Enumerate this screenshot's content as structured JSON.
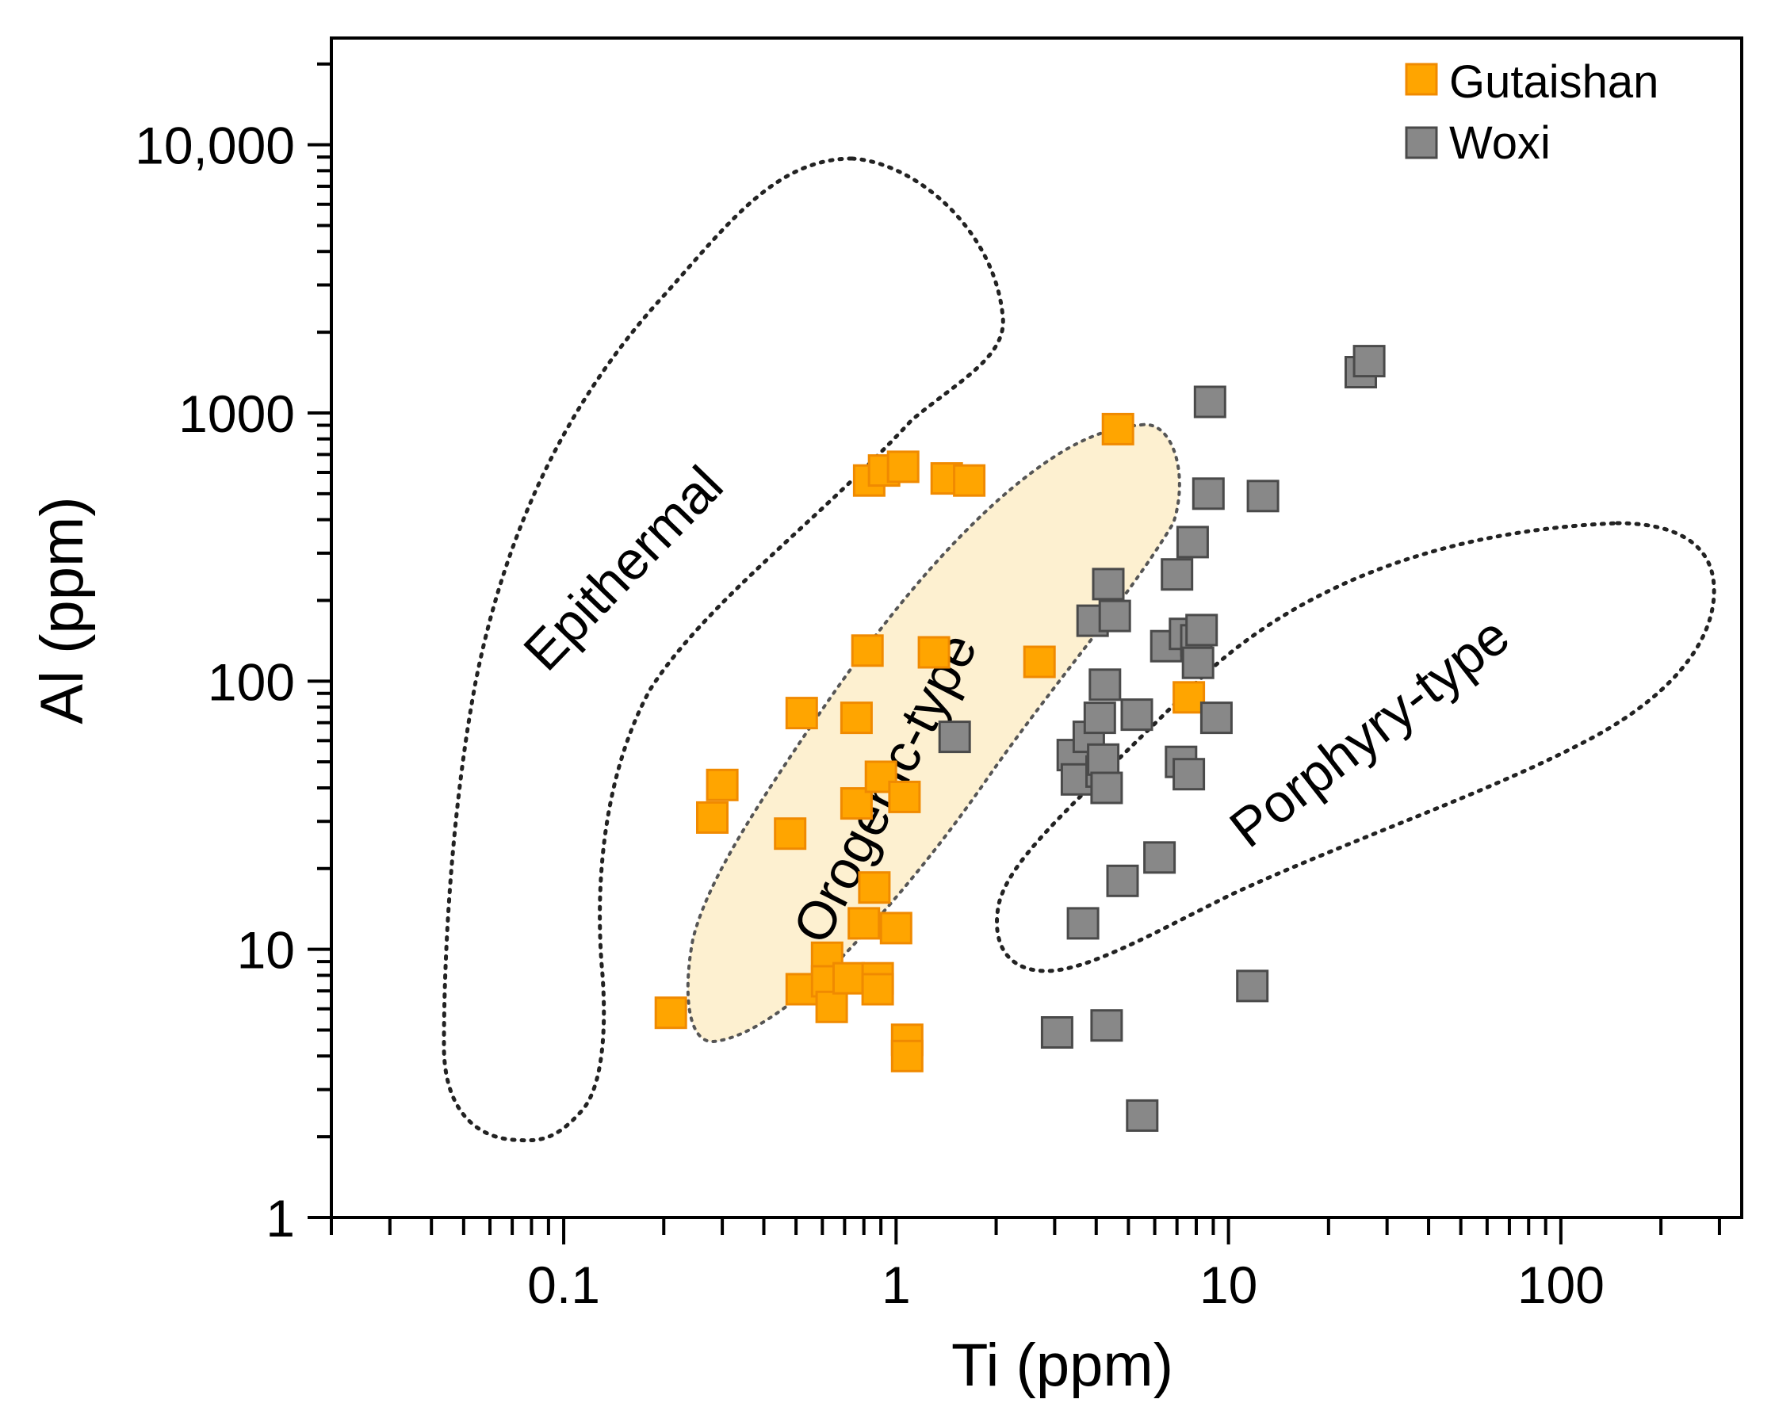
{
  "chart_data": {
    "type": "scatter",
    "title": "",
    "xlabel": "Ti (ppm)",
    "ylabel": "Al (ppm)",
    "xscale": "log",
    "yscale": "log",
    "xlim": [
      0.02,
      350
    ],
    "ylim": [
      1,
      25000
    ],
    "x_tick_labels": [
      {
        "value": 0.1,
        "label": "0.1"
      },
      {
        "value": 1,
        "label": "1"
      },
      {
        "value": 10,
        "label": "10"
      },
      {
        "value": 100,
        "label": "100"
      }
    ],
    "y_tick_labels": [
      {
        "value": 1,
        "label": "1"
      },
      {
        "value": 10,
        "label": "10"
      },
      {
        "value": 100,
        "label": "100"
      },
      {
        "value": 1000,
        "label": "1000"
      },
      {
        "value": 10000,
        "label": "10,000"
      }
    ],
    "legend_position": "top-right",
    "series": [
      {
        "name": "Gutaishan",
        "color": "#FFA500",
        "edge_color": "#F08A00",
        "points": [
          [
            0.21,
            5.8
          ],
          [
            0.28,
            31
          ],
          [
            0.3,
            41
          ],
          [
            0.48,
            27
          ],
          [
            0.52,
            76
          ],
          [
            0.52,
            7.1
          ],
          [
            0.62,
            9.3
          ],
          [
            0.62,
            7.6
          ],
          [
            0.64,
            6.1
          ],
          [
            0.72,
            7.8
          ],
          [
            0.76,
            73
          ],
          [
            0.76,
            35
          ],
          [
            0.8,
            12.5
          ],
          [
            0.82,
            130
          ],
          [
            0.83,
            560
          ],
          [
            0.86,
            17
          ],
          [
            0.88,
            7.8
          ],
          [
            0.88,
            7.1
          ],
          [
            0.9,
            44
          ],
          [
            0.92,
            610
          ],
          [
            1.0,
            12
          ],
          [
            1.05,
            630
          ],
          [
            1.06,
            37
          ],
          [
            1.08,
            4.6
          ],
          [
            1.08,
            4.0
          ],
          [
            1.3,
            128
          ],
          [
            1.42,
            570
          ],
          [
            1.66,
            560
          ],
          [
            2.7,
            118
          ],
          [
            4.65,
            870
          ],
          [
            7.6,
            87
          ]
        ]
      },
      {
        "name": "Woxi",
        "color": "#888888",
        "edge_color": "#4a4a4a",
        "points": [
          [
            1.5,
            62
          ],
          [
            3.05,
            4.9
          ],
          [
            3.4,
            53
          ],
          [
            3.5,
            43
          ],
          [
            3.65,
            12.5
          ],
          [
            3.8,
            62
          ],
          [
            3.9,
            168
          ],
          [
            4.1,
            73
          ],
          [
            4.15,
            46
          ],
          [
            4.2,
            51
          ],
          [
            4.25,
            97
          ],
          [
            4.3,
            40
          ],
          [
            4.3,
            5.2
          ],
          [
            4.35,
            230
          ],
          [
            4.55,
            175
          ],
          [
            4.8,
            18
          ],
          [
            5.3,
            75
          ],
          [
            5.5,
            2.4
          ],
          [
            6.2,
            22
          ],
          [
            6.5,
            135
          ],
          [
            7.0,
            250
          ],
          [
            7.2,
            50
          ],
          [
            7.4,
            150
          ],
          [
            7.6,
            45
          ],
          [
            7.8,
            330
          ],
          [
            8.0,
            142
          ],
          [
            8.1,
            117
          ],
          [
            8.3,
            155
          ],
          [
            8.7,
            500
          ],
          [
            8.8,
            1100
          ],
          [
            9.2,
            73
          ],
          [
            11.8,
            7.3
          ],
          [
            12.7,
            490
          ],
          [
            25,
            1420
          ],
          [
            26.5,
            1560
          ]
        ]
      }
    ],
    "regions": [
      {
        "name": "Epithermal",
        "style": "dotted outline"
      },
      {
        "name": "Orogenic-type",
        "style": "filled",
        "fill": "#FDF0D0"
      },
      {
        "name": "Porphyry-type",
        "style": "dotted outline"
      }
    ]
  }
}
